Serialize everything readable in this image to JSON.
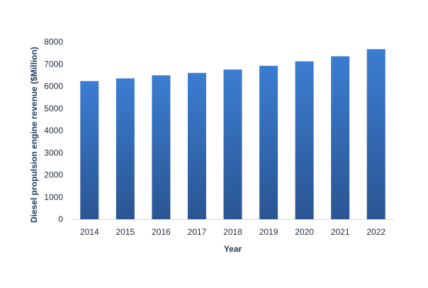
{
  "chart_data": {
    "type": "bar",
    "title": "",
    "xlabel": "Year",
    "ylabel": "Diesel propulsion engine revenue ($Million)",
    "categories": [
      "2014",
      "2015",
      "2016",
      "2017",
      "2018",
      "2019",
      "2020",
      "2021",
      "2022"
    ],
    "values": [
      6230,
      6350,
      6490,
      6600,
      6750,
      6920,
      7120,
      7350,
      7670
    ],
    "ylim": [
      0,
      8000
    ],
    "yticks": [
      "0",
      "1000",
      "2000",
      "3000",
      "4000",
      "5000",
      "6000",
      "7000",
      "8000"
    ],
    "grid": false,
    "legend": "none",
    "colors": {
      "bar_top": "#3b7dd1",
      "bar_bottom": "#2a5592",
      "axis": "#d9d9d9"
    }
  }
}
